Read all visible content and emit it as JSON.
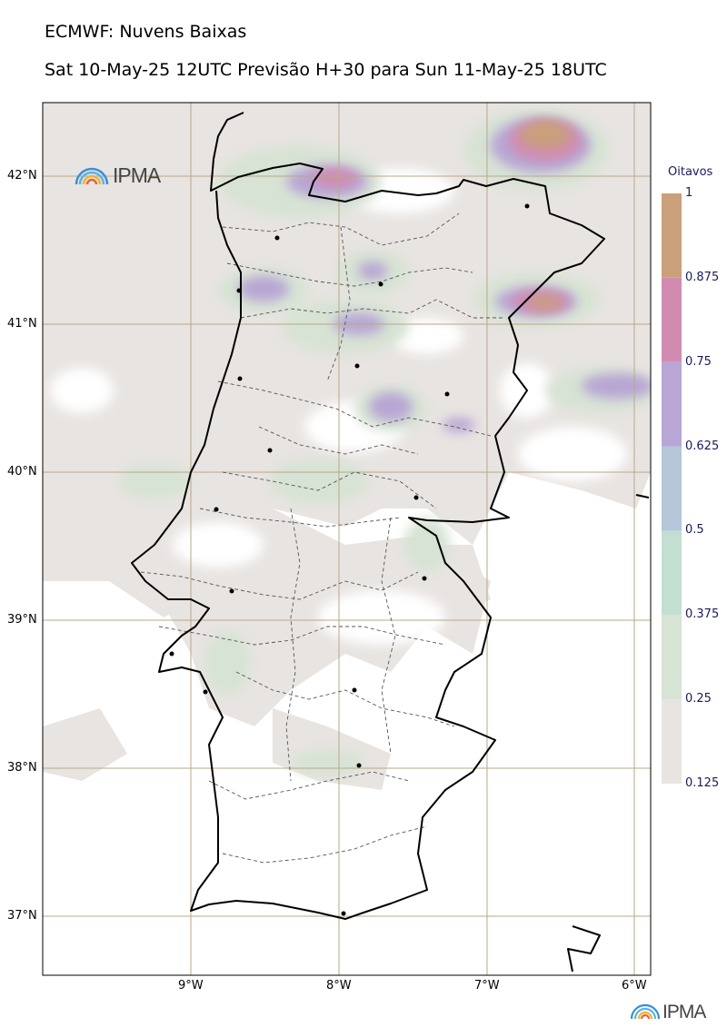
{
  "title": "ECMWF: Nuvens Baixas",
  "subtitle": "Sat 10-May-25 12UTC Previsão H+30 para Sun 11-May-25 18UTC",
  "logo_text": "IPMA",
  "colorbar": {
    "title": "Oitavos",
    "levels": [
      "0.125",
      "0.25",
      "0.375",
      "0.5",
      "0.625",
      "0.75",
      "0.875",
      "1"
    ],
    "colors": [
      "#e8e4e1",
      "#d7e3d4",
      "#c3dfd2",
      "#b4c6d8",
      "#b8a6d4",
      "#d28bb0",
      "#c9a07a"
    ]
  },
  "axes": {
    "lon_labels": [
      "9°W",
      "8°W",
      "7°W",
      "6°W"
    ],
    "lat_labels": [
      "42°N",
      "41°N",
      "40°N",
      "39°N",
      "38°N",
      "37°N"
    ]
  },
  "icons": {
    "logo": "ipma-rainbow-logo-icon"
  }
}
